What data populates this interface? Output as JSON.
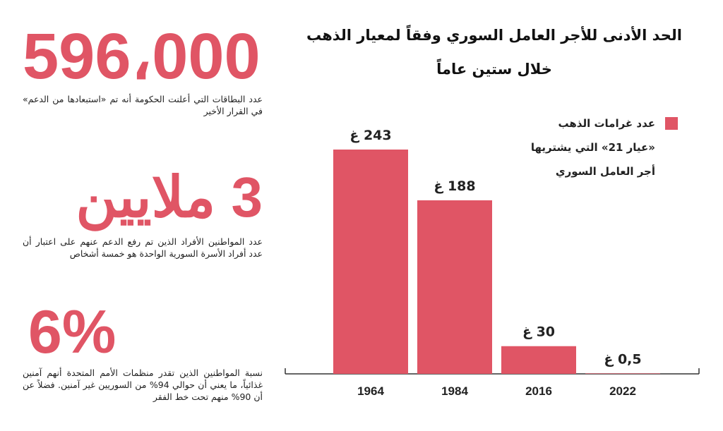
{
  "stats": [
    {
      "number": "596،000",
      "description": "عدد البطاقات التي أعلنت الحكومة أنه تم «استبعادها من الدعم» في القرار الأخير"
    },
    {
      "number": "3 ملايين",
      "description": "عدد المواطنين الأفراد الذين تم رفع الدعم عنهم على اعتبار أن عدد أفراد الأسرة السورية الواحدة هو خمسة أشخاص"
    },
    {
      "number": "6%",
      "description": "نسبة المواطنين الذين تقدر منظمات الأمم المتحدة أنهم آمنين غذائياً، ما يعني أن حوالي 94% من السوريين غير آمنين. فضلاً عن أن 90% منهم تحت خط الفقر"
    }
  ],
  "chart_data": {
    "type": "bar",
    "title": "الحد الأدنى للأجر العامل السوري وفقاً لمعيار الذهب",
    "subtitle": "خلال ستين عاماً",
    "categories": [
      "1964",
      "1984",
      "2016",
      "2022"
    ],
    "series": [
      {
        "name": "عدد غرامات الذهب «عيار 21» التي يشتريها أجر العامل السوري",
        "values": [
          243,
          188,
          30,
          0.5
        ]
      }
    ],
    "data_labels": [
      "243 غ",
      "188 غ",
      "30 غ",
      "0,5 غ"
    ],
    "legend_lines": [
      "عدد غرامات الذهب",
      "«عيار 21» التي يشتريها",
      "أجر العامل السوري"
    ],
    "legend_position": "top-right",
    "ylim": [
      0,
      243
    ],
    "grid": false,
    "bar_color": "#e05565",
    "axis_color": "#333333",
    "text_color": "#222222"
  }
}
